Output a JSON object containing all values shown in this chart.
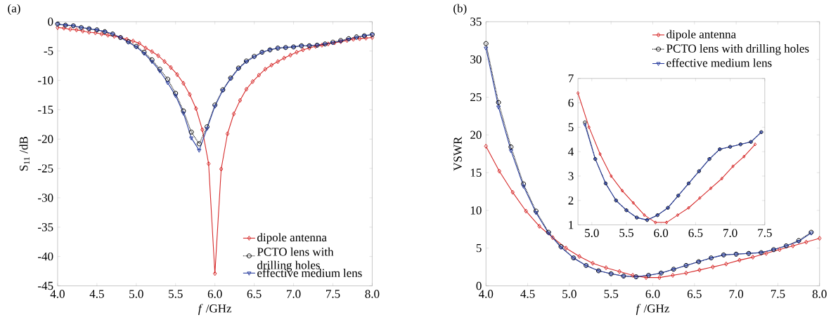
{
  "chart_data": [
    {
      "type": "line",
      "title": "(a)",
      "xlabel": "*f* /GHz",
      "ylabel": "S$_{11}$ /dB",
      "xlim": [
        4,
        8
      ],
      "ylim": [
        -45,
        0
      ],
      "xticks": [
        {
          "value": 4,
          "label": "4.0"
        },
        {
          "value": 4.5,
          "label": "4.5"
        },
        {
          "value": 5,
          "label": "5.0"
        },
        {
          "value": 5.5,
          "label": "5.5"
        },
        {
          "value": 6,
          "label": "6.0"
        },
        {
          "value": 6.5,
          "label": "6.5"
        },
        {
          "value": 7,
          "label": "7.0"
        },
        {
          "value": 7.5,
          "label": "7.5"
        },
        {
          "value": 8,
          "label": "8.0"
        }
      ],
      "yticks": [
        0,
        -5,
        -10,
        -15,
        -20,
        -25,
        -30,
        -35,
        -40,
        -45
      ],
      "legend": "bottom right",
      "series": [
        {
          "name": "dipole antenna",
          "color": "#d62b2b",
          "marker": "diamond",
          "line_style": "solid",
          "x": [
            4.0,
            4.08,
            4.16,
            4.24,
            4.32,
            4.4,
            4.48,
            4.56,
            4.64,
            4.72,
            4.8,
            4.88,
            4.96,
            5.04,
            5.12,
            5.2,
            5.28,
            5.36,
            5.44,
            5.52,
            5.6,
            5.68,
            5.76,
            5.84,
            5.92,
            6.0,
            6.08,
            6.16,
            6.24,
            6.32,
            6.4,
            6.48,
            6.56,
            6.64,
            6.72,
            6.8,
            6.88,
            6.96,
            7.04,
            7.12,
            7.2,
            7.28,
            7.36,
            7.44,
            7.52,
            7.6,
            7.68,
            7.76,
            7.84,
            7.92,
            8.0
          ],
          "values": [
            -1.0,
            -1.1,
            -1.3,
            -1.4,
            -1.6,
            -1.8,
            -1.9,
            -2.1,
            -2.3,
            -2.5,
            -2.7,
            -3.0,
            -3.3,
            -3.7,
            -4.5,
            -5.1,
            -5.8,
            -6.8,
            -7.8,
            -9.0,
            -10.5,
            -12.4,
            -14.8,
            -18.4,
            -24.2,
            -42.9,
            -25.1,
            -19.1,
            -15.7,
            -13.4,
            -11.5,
            -10.2,
            -9.1,
            -8.1,
            -7.4,
            -6.8,
            -6.2,
            -5.7,
            -5.2,
            -4.8,
            -4.5,
            -4.2,
            -4.0,
            -3.8,
            -3.6,
            -3.4,
            -3.2,
            -3.0,
            -2.9,
            -2.8,
            -2.7
          ]
        },
        {
          "name": "PCTO lens with drilling holes",
          "color": "#000000",
          "marker": "circle",
          "line_style": "dotted",
          "x": [
            4.0,
            4.1,
            4.2,
            4.3,
            4.4,
            4.5,
            4.6,
            4.7,
            4.8,
            4.9,
            5.0,
            5.1,
            5.2,
            5.3,
            5.4,
            5.5,
            5.6,
            5.7,
            5.8,
            5.9,
            6.0,
            6.1,
            6.2,
            6.3,
            6.4,
            6.5,
            6.6,
            6.7,
            6.8,
            6.9,
            7.0,
            7.1,
            7.2,
            7.3,
            7.4,
            7.5,
            7.6,
            7.7,
            7.8,
            7.9,
            8.0
          ],
          "values": [
            -0.4,
            -0.6,
            -0.7,
            -1.0,
            -1.2,
            -1.4,
            -1.7,
            -2.1,
            -2.7,
            -3.4,
            -4.2,
            -5.2,
            -6.5,
            -8.1,
            -9.8,
            -12.2,
            -15.2,
            -18.8,
            -20.8,
            -17.9,
            -14.2,
            -11.6,
            -9.6,
            -7.9,
            -6.7,
            -5.9,
            -5.2,
            -4.8,
            -4.5,
            -4.4,
            -4.3,
            -4.1,
            -4.1,
            -4.0,
            -3.8,
            -3.5,
            -3.2,
            -2.9,
            -2.6,
            -2.4,
            -2.2
          ]
        },
        {
          "name": "effective medium lens",
          "color": "#2a3fa0",
          "marker": "triangle",
          "line_style": "solid",
          "x": [
            4.0,
            4.1,
            4.2,
            4.3,
            4.4,
            4.5,
            4.6,
            4.7,
            4.8,
            4.9,
            5.0,
            5.1,
            5.2,
            5.3,
            5.4,
            5.5,
            5.6,
            5.7,
            5.8,
            5.9,
            6.0,
            6.1,
            6.2,
            6.3,
            6.4,
            6.5,
            6.6,
            6.7,
            6.8,
            6.9,
            7.0,
            7.1,
            7.2,
            7.3,
            7.4,
            7.5,
            7.6,
            7.7,
            7.8,
            7.9,
            8.0
          ],
          "values": [
            -0.4,
            -0.6,
            -0.7,
            -1.0,
            -1.2,
            -1.4,
            -1.7,
            -2.1,
            -2.7,
            -3.5,
            -4.3,
            -5.4,
            -6.8,
            -8.4,
            -10.4,
            -12.6,
            -15.6,
            -19.8,
            -21.9,
            -18.2,
            -14.4,
            -11.7,
            -9.7,
            -8.0,
            -6.8,
            -6.0,
            -5.2,
            -4.8,
            -4.5,
            -4.4,
            -4.3,
            -4.1,
            -4.1,
            -4.0,
            -3.8,
            -3.6,
            -3.3,
            -3.0,
            -2.7,
            -2.4,
            -2.2
          ]
        }
      ]
    },
    {
      "type": "line",
      "title": "(b)",
      "xlabel": "*f* /GHz",
      "ylabel": "VSWR",
      "xlim": [
        4,
        8
      ],
      "ylim": [
        0,
        35
      ],
      "xticks": [
        {
          "value": 4,
          "label": "4.0"
        },
        {
          "value": 4.5,
          "label": "4.5"
        },
        {
          "value": 5,
          "label": "5.0"
        },
        {
          "value": 5.5,
          "label": "5.5"
        },
        {
          "value": 6,
          "label": "6.0"
        },
        {
          "value": 6.5,
          "label": "6.5"
        },
        {
          "value": 7,
          "label": "7.0"
        },
        {
          "value": 7.5,
          "label": "7.5"
        },
        {
          "value": 8,
          "label": "8.0"
        }
      ],
      "yticks": [
        0,
        5,
        10,
        15,
        20,
        25,
        30,
        35
      ],
      "legend": "top right",
      "series": [
        {
          "name": "dipole antenna",
          "color": "#d62b2b",
          "marker": "diamond",
          "line_style": "solid",
          "x": [
            4.0,
            4.16,
            4.32,
            4.48,
            4.64,
            4.8,
            4.96,
            5.12,
            5.28,
            5.44,
            5.6,
            5.76,
            5.92,
            6.08,
            6.24,
            6.4,
            6.56,
            6.72,
            6.88,
            7.04,
            7.2,
            7.36,
            7.52,
            7.68,
            7.84,
            8.0
          ],
          "values": [
            18.5,
            15.2,
            12.4,
            9.9,
            7.9,
            6.4,
            5.0,
            3.9,
            3.0,
            2.4,
            1.9,
            1.4,
            1.1,
            1.1,
            1.4,
            1.7,
            2.1,
            2.5,
            2.9,
            3.4,
            3.8,
            4.3,
            4.8,
            5.3,
            5.8,
            6.3
          ]
        },
        {
          "name": "PCTO lens with drilling holes",
          "color": "#000000",
          "marker": "circle",
          "line_style": "dotted",
          "x": [
            4.0,
            4.15,
            4.3,
            4.45,
            4.6,
            4.75,
            4.9,
            5.05,
            5.2,
            5.35,
            5.5,
            5.65,
            5.8,
            5.95,
            6.1,
            6.25,
            6.4,
            6.55,
            6.7,
            6.85,
            7.0,
            7.15,
            7.3,
            7.45,
            7.6,
            7.75,
            7.9
          ],
          "values": [
            32.1,
            24.3,
            18.4,
            13.5,
            9.9,
            7.1,
            5.2,
            3.7,
            2.7,
            2.0,
            1.6,
            1.3,
            1.2,
            1.4,
            1.7,
            2.2,
            2.7,
            3.2,
            3.7,
            4.1,
            4.2,
            4.3,
            4.4,
            4.8,
            5.3,
            6.0,
            7.1
          ]
        },
        {
          "name": "effective medium lens",
          "color": "#2a3fa0",
          "marker": "triangle",
          "line_style": "solid",
          "x": [
            4.0,
            4.15,
            4.3,
            4.45,
            4.6,
            4.75,
            4.9,
            5.05,
            5.2,
            5.35,
            5.5,
            5.65,
            5.8,
            5.95,
            6.1,
            6.25,
            6.4,
            6.55,
            6.7,
            6.85,
            7.0,
            7.15,
            7.3,
            7.45,
            7.6,
            7.75,
            7.9
          ],
          "values": [
            31.5,
            23.7,
            17.9,
            13.2,
            9.7,
            7.0,
            5.1,
            3.7,
            2.7,
            2.0,
            1.6,
            1.3,
            1.2,
            1.4,
            1.7,
            2.2,
            2.7,
            3.2,
            3.7,
            4.1,
            4.2,
            4.3,
            4.4,
            4.8,
            5.3,
            5.9,
            7.0
          ]
        }
      ]
    },
    {
      "type": "line",
      "xlim": [
        4.8,
        7.5
      ],
      "ylim": [
        1,
        7
      ],
      "xticks": [
        {
          "value": 5,
          "label": "5.0"
        },
        {
          "value": 5.5,
          "label": "5.5"
        },
        {
          "value": 6,
          "label": "6.0"
        },
        {
          "value": 6.5,
          "label": "6.5"
        },
        {
          "value": 7,
          "label": "7.0"
        },
        {
          "value": 7.5,
          "label": "7.5"
        }
      ],
      "yticks": [
        1,
        2,
        3,
        4,
        5,
        6,
        7
      ],
      "series": [
        {
          "color": "#d62b2b",
          "marker": "diamond",
          "line_style": "solid",
          "x": [
            4.8,
            4.96,
            5.12,
            5.28,
            5.44,
            5.6,
            5.76,
            5.92,
            6.08,
            6.24,
            6.4,
            6.56,
            6.72,
            6.88,
            7.04,
            7.2,
            7.36
          ],
          "values": [
            6.4,
            5.0,
            3.9,
            3.0,
            2.4,
            1.9,
            1.4,
            1.1,
            1.1,
            1.4,
            1.7,
            2.1,
            2.5,
            2.9,
            3.4,
            3.8,
            4.3
          ]
        },
        {
          "color": "#000000",
          "marker": "circle",
          "line_style": "dotted",
          "x": [
            4.9,
            5.05,
            5.2,
            5.35,
            5.5,
            5.65,
            5.8,
            5.95,
            6.1,
            6.25,
            6.4,
            6.55,
            6.7,
            6.85,
            7.0,
            7.15,
            7.3,
            7.45
          ],
          "values": [
            5.2,
            3.7,
            2.7,
            2.0,
            1.6,
            1.3,
            1.2,
            1.4,
            1.7,
            2.2,
            2.7,
            3.2,
            3.7,
            4.1,
            4.2,
            4.3,
            4.4,
            4.8
          ]
        },
        {
          "color": "#2a3fa0",
          "marker": "triangle",
          "line_style": "solid",
          "x": [
            4.9,
            5.05,
            5.2,
            5.35,
            5.5,
            5.65,
            5.8,
            5.95,
            6.1,
            6.25,
            6.4,
            6.55,
            6.7,
            6.85,
            7.0,
            7.15,
            7.3,
            7.45
          ],
          "values": [
            5.1,
            3.7,
            2.7,
            2.0,
            1.6,
            1.3,
            1.2,
            1.4,
            1.7,
            2.2,
            2.7,
            3.2,
            3.7,
            4.1,
            4.2,
            4.3,
            4.4,
            4.8
          ]
        }
      ]
    }
  ]
}
